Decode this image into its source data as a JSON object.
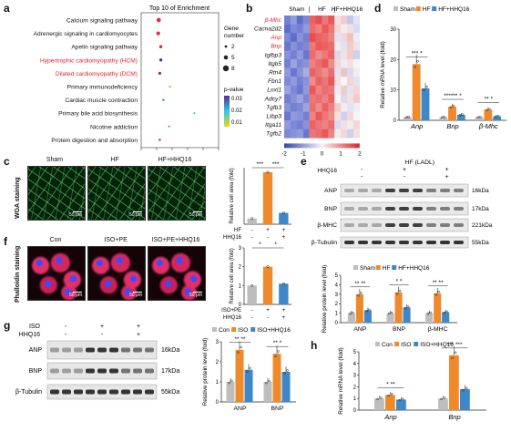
{
  "panel_a": {
    "label": "a",
    "title": "Top 10 of Enrichment",
    "xlabel": "Enrichment Score",
    "legend_size_title": "Gene number",
    "legend_size_items": [
      "2",
      "5",
      "8"
    ],
    "legend_color_title": "p-value",
    "legend_color_ticks": [
      "0.03",
      "0.02",
      "0.01"
    ],
    "colors": {
      "highlight": "#e8212a",
      "scale_high": "#5b2a90",
      "scale_mid": "#2ec8e8",
      "scale_low": "#e8d818"
    }
  },
  "chart_data": [
    {
      "type": "scatter",
      "panel": "a",
      "xlim": [
        0,
        15
      ],
      "xticks": [
        "0",
        "3",
        "6",
        "9",
        "12",
        "15"
      ],
      "categories": [
        "Calcium signaling pathway",
        "Adrenergic signaling in cardiomyocytes",
        "Apelin signaling pathway",
        "Hypertrophic cardiomyopathy (HCM)",
        "Dilated cardiomyopathy (DCM)",
        "Primary immunodeficiency",
        "Cardiac muscle contraction",
        "Primary bile acid biosynthesis",
        "Nicotine addiction",
        "Protein digestion and absorption"
      ],
      "x": [
        3.4,
        3.3,
        3.8,
        3.8,
        3.6,
        5.6,
        4.3,
        10.3,
        5.4,
        3.6
      ],
      "gene_number": [
        8,
        7,
        5,
        5,
        5,
        3,
        3,
        2,
        2,
        3
      ],
      "highlight": [
        false,
        false,
        false,
        true,
        true,
        false,
        false,
        false,
        false,
        false
      ],
      "point_colors": [
        "#d9343b",
        "#d9343b",
        "#c8302f",
        "#4a2fa0",
        "#c42f2f",
        "#a6d62a",
        "#2fb35a",
        "#2ec8e8",
        "#3ab84a",
        "#d9343b"
      ]
    },
    {
      "type": "heatmap",
      "panel": "b",
      "columns": [
        "Sham",
        "HF",
        "HF+HHQ16"
      ],
      "rows": [
        "β-Mhc",
        "Cacna2d2",
        "Anp",
        "Bnp",
        "Igfbp3",
        "Itgb5",
        "Rtn4",
        "Fbn1",
        "Loxl1",
        "Adcy7",
        "Tgfb3",
        "Ltbp3",
        "Itga11",
        "Tgfb2"
      ],
      "row_highlight": [
        true,
        false,
        true,
        true,
        false,
        false,
        false,
        false,
        false,
        false,
        false,
        false,
        false,
        false
      ],
      "colorbar_ticks": [
        "-2",
        "-1",
        "0",
        "1",
        "2"
      ],
      "values": [
        [
          -1.3,
          -1.0,
          -1.5,
          -1.2,
          1.4,
          1.6,
          1.2,
          1.5,
          0.2,
          0.4,
          -0.5,
          -0.2
        ],
        [
          -1.5,
          -1.2,
          -1.3,
          -1.0,
          1.3,
          1.1,
          1.5,
          1.2,
          0.3,
          0.1,
          0.2,
          -0.3
        ],
        [
          -1.2,
          -1.5,
          -1.1,
          -1.3,
          1.6,
          1.4,
          1.3,
          1.1,
          -0.2,
          0.3,
          0.5,
          -0.1
        ],
        [
          -1.4,
          -1.1,
          -1.3,
          -1.2,
          1.2,
          1.5,
          1.4,
          1.3,
          0.1,
          -0.2,
          0.4,
          0.2
        ],
        [
          -1.1,
          -1.3,
          -1.0,
          -1.4,
          1.3,
          1.0,
          1.2,
          1.4,
          -0.3,
          0.2,
          0.4,
          -0.4
        ],
        [
          -1.3,
          -0.9,
          -1.2,
          -1.1,
          1.1,
          1.3,
          1.5,
          1.0,
          0.3,
          -0.1,
          0.2,
          0.0
        ],
        [
          -1.0,
          -1.4,
          -1.1,
          -0.8,
          1.4,
          1.2,
          1.0,
          1.3,
          -0.2,
          0.5,
          -0.3,
          0.1
        ],
        [
          -1.2,
          -1.0,
          -1.3,
          -1.1,
          1.0,
          1.4,
          1.2,
          1.5,
          0.2,
          0.0,
          0.3,
          -0.2
        ],
        [
          -0.9,
          -1.2,
          -1.4,
          -1.0,
          1.5,
          1.1,
          1.3,
          1.2,
          -0.1,
          0.4,
          -0.2,
          0.3
        ],
        [
          -1.3,
          -1.1,
          -0.9,
          -1.2,
          1.2,
          1.3,
          1.1,
          1.4,
          0.0,
          -0.3,
          0.2,
          0.4
        ],
        [
          -1.1,
          -1.3,
          -1.2,
          -0.9,
          1.3,
          1.0,
          1.4,
          1.1,
          0.4,
          0.1,
          -0.2,
          -0.1
        ],
        [
          -1.4,
          -1.0,
          -1.1,
          -1.3,
          1.1,
          1.5,
          1.2,
          1.0,
          0.2,
          -0.4,
          0.3,
          0.0
        ],
        [
          -1.0,
          -1.2,
          -1.3,
          -1.1,
          1.4,
          1.2,
          1.1,
          1.3,
          -0.3,
          0.2,
          0.1,
          0.3
        ],
        [
          -1.2,
          -1.1,
          -1.0,
          -1.4,
          1.2,
          1.3,
          1.5,
          1.1,
          0.1,
          0.3,
          -0.4,
          0.2
        ]
      ]
    },
    {
      "type": "bar",
      "panel": "d",
      "ylabel": "Relative mRNA level (fold)",
      "ylim": [
        0,
        30
      ],
      "yticks": [
        "0",
        "10",
        "20",
        "30"
      ],
      "categories": [
        "Anp",
        "Bnp",
        "β-Mhc"
      ],
      "series": [
        {
          "name": "Sham",
          "values": [
            1.0,
            1.0,
            1.0
          ]
        },
        {
          "name": "HF",
          "values": [
            18.5,
            4.5,
            3.5
          ]
        },
        {
          "name": "HF+HHQ16",
          "values": [
            10.5,
            1.8,
            1.3
          ]
        }
      ],
      "significance": [
        "*** *",
        "****** *",
        "** *"
      ]
    },
    {
      "type": "bar",
      "panel": "c",
      "ylabel": "Relative cell area (fold)",
      "ylim": [
        0,
        10
      ],
      "categories": [
        "Sham",
        "HF",
        "HF+HHQ16"
      ],
      "values": [
        1.0,
        9.2,
        2.0
      ],
      "significance": [
        "***",
        "***"
      ],
      "row_labels": [
        "HF",
        "HHQ16"
      ],
      "row_marks": [
        [
          "-",
          "+",
          "+"
        ],
        [
          "-",
          "-",
          "+"
        ]
      ]
    },
    {
      "type": "bar",
      "panel": "f",
      "ylabel": "Relative cell area (fold)",
      "ylim": [
        0,
        3
      ],
      "yticks": [
        "0",
        "1",
        "2",
        "3"
      ],
      "categories": [
        "Con",
        "ISO+PE",
        "ISO+PE+HHQ16"
      ],
      "values": [
        1.0,
        2.0,
        1.1
      ],
      "significance": [
        "*",
        "*"
      ],
      "row_labels": [
        "ISO+PE",
        "HHQ16"
      ],
      "row_marks": [
        [
          "-",
          "+",
          "+"
        ],
        [
          "-",
          "-",
          "+"
        ]
      ]
    },
    {
      "type": "bar",
      "panel": "e",
      "ylabel": "Relative protein level (fold)",
      "ylim": [
        0,
        5
      ],
      "yticks": [
        "0",
        "1",
        "2",
        "3",
        "4",
        "5"
      ],
      "categories": [
        "ANP",
        "BNP",
        "β-MHC"
      ],
      "series": [
        {
          "name": "Sham",
          "values": [
            1.0,
            1.0,
            1.0
          ]
        },
        {
          "name": "HF",
          "values": [
            3.0,
            3.2,
            3.1
          ]
        },
        {
          "name": "HF+HHQ16",
          "values": [
            1.3,
            1.6,
            1.1
          ]
        }
      ],
      "significance": [
        "** **",
        "* *",
        "** **"
      ]
    },
    {
      "type": "bar",
      "panel": "g",
      "ylabel": "Relative protein level (fold)",
      "ylim": [
        0,
        3
      ],
      "yticks": [
        "0",
        "1",
        "2",
        "3"
      ],
      "categories": [
        "ANP",
        "BNP"
      ],
      "series": [
        {
          "name": "Con",
          "values": [
            1.0,
            1.0
          ]
        },
        {
          "name": "ISO",
          "values": [
            2.6,
            2.4
          ]
        },
        {
          "name": "ISO+HHQ16",
          "values": [
            1.6,
            1.5
          ]
        }
      ],
      "significance": [
        "** **",
        "** *"
      ]
    },
    {
      "type": "bar",
      "panel": "h",
      "ylabel": "Relative mRNA level (fold)",
      "ylim": [
        0,
        5
      ],
      "yticks": [
        "0",
        "1",
        "2",
        "3",
        "4",
        "5"
      ],
      "categories": [
        "Anp",
        "Bnp"
      ],
      "series": [
        {
          "name": "Con",
          "values": [
            1.0,
            1.0
          ]
        },
        {
          "name": "ISO",
          "values": [
            1.3,
            4.7
          ]
        },
        {
          "name": "ISO+HHQ16",
          "values": [
            0.9,
            1.8
          ]
        }
      ],
      "significance": [
        "* **",
        "*** ***"
      ]
    }
  ],
  "panel_b": {
    "label": "b"
  },
  "panel_c": {
    "label": "c",
    "side_label": "WGA staining",
    "images": [
      "Sham",
      "HF",
      "HF+HHQ16"
    ],
    "scale": "50 μm"
  },
  "panel_d": {
    "label": "d"
  },
  "panel_e": {
    "label": "e",
    "top_row_label": "HF (LADL)",
    "second_row_label": "HHQ16",
    "row1_marks": [
      "-",
      "+",
      "+"
    ],
    "row2_marks": [
      "-",
      "-",
      "+"
    ],
    "bands": [
      "ANP",
      "BNP",
      "β-MHC",
      "β-Tubulin"
    ],
    "sizes": [
      "16kDa",
      "17kDa",
      "221kDa",
      "55kDa"
    ]
  },
  "panel_f": {
    "label": "f",
    "side_label": "Phalloidin staining",
    "images": [
      "Con",
      "ISO+PE",
      "ISO+PE+HHQ16"
    ],
    "scale": "50 μm"
  },
  "panel_g": {
    "label": "g",
    "row1_label": "ISO",
    "row2_label": "HHQ16",
    "row1_marks": [
      "-",
      "+",
      "+"
    ],
    "row2_marks": [
      "-",
      "-",
      "+"
    ],
    "bands": [
      "ANP",
      "BNP",
      "β-Tubulin"
    ],
    "sizes": [
      "16kDa",
      "17kDa",
      "55kDa"
    ]
  },
  "panel_h": {
    "label": "h"
  },
  "palette": {
    "sham": "#bdbdbd",
    "hf": "#ee8a2c",
    "treat": "#3e88c8",
    "text_red": "#e8212a"
  }
}
